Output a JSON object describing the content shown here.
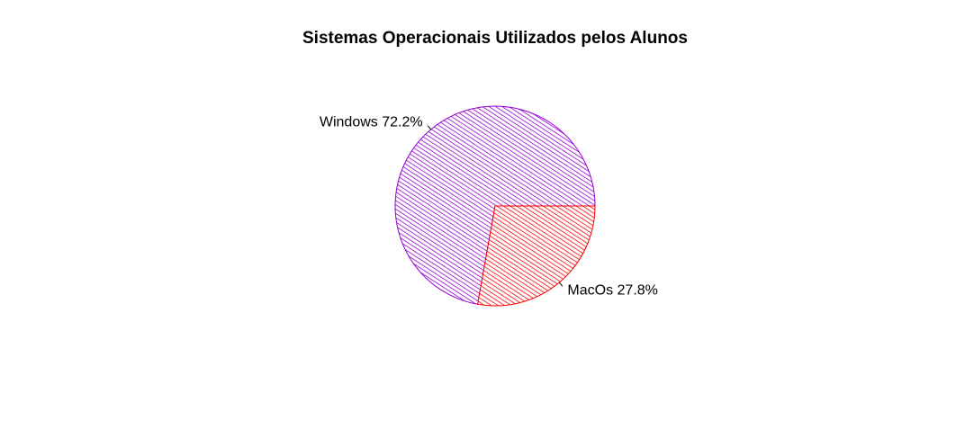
{
  "chart_data": {
    "type": "pie",
    "title": "Sistemas Operacionais Utilizados pelos Alunos",
    "slices": [
      {
        "label": "Windows 72.2%",
        "value": 72.2,
        "color": "#9400d3"
      },
      {
        "label": "MacOs 27.8%",
        "value": 27.8,
        "color": "#ff0000"
      }
    ],
    "fill_pattern": "diagonal-hatch",
    "legend": "none"
  }
}
